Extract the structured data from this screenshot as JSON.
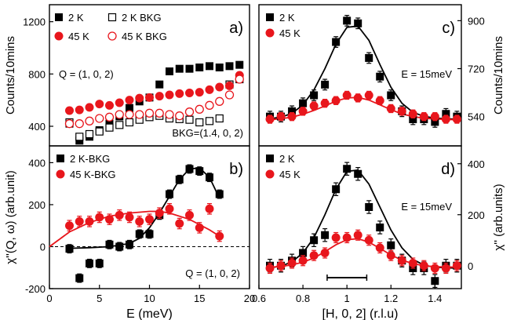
{
  "colors": {
    "s2K": "#000000",
    "s45K": "#e8161c"
  },
  "chart_data": [
    {
      "id": "a",
      "type": "scatter",
      "panel_label": "a)",
      "xlim": [
        0,
        20
      ],
      "ylim": [
        250,
        1330
      ],
      "yticks": [
        400,
        800,
        1200
      ],
      "ylabel": "Counts/10mins",
      "legend": [
        "2 K",
        "2 K BKG",
        "45 K",
        "45 K BKG"
      ],
      "annotations": [
        "Q = (1, 0, 2)",
        "BKG=(1.4, 0, 2)"
      ],
      "series": [
        {
          "name": "2 K",
          "style": "square-filled",
          "color": "#000000",
          "x": [
            2,
            3,
            4,
            5,
            6,
            7,
            8,
            9,
            10,
            11,
            12,
            13,
            14,
            15,
            16,
            17,
            18,
            19
          ],
          "y": [
            420,
            290,
            320,
            370,
            420,
            475,
            540,
            590,
            620,
            720,
            820,
            840,
            840,
            850,
            860,
            850,
            860,
            870
          ]
        },
        {
          "name": "2 K BKG",
          "style": "square-open",
          "color": "#000000",
          "x": [
            2,
            3,
            4,
            5,
            6,
            7,
            8,
            9,
            10,
            11,
            12,
            13,
            14,
            15,
            16,
            17,
            18,
            19
          ],
          "y": [
            430,
            320,
            340,
            360,
            390,
            410,
            430,
            450,
            470,
            480,
            460,
            455,
            450,
            430,
            440,
            460,
            720,
            760
          ]
        },
        {
          "name": "45 K",
          "style": "circle-filled",
          "color": "#e8161c",
          "x": [
            2,
            3,
            4,
            5,
            6,
            7,
            8,
            9,
            10,
            11,
            12,
            13,
            14,
            15,
            16,
            17,
            18,
            19
          ],
          "y": [
            520,
            525,
            545,
            570,
            560,
            580,
            600,
            615,
            620,
            630,
            640,
            650,
            655,
            660,
            680,
            700,
            710,
            790
          ]
        },
        {
          "name": "45 K BKG",
          "style": "circle-open",
          "color": "#e8161c",
          "x": [
            2,
            3,
            4,
            5,
            6,
            7,
            8,
            9,
            10,
            11,
            12,
            13,
            14,
            15,
            16,
            17,
            18,
            19
          ],
          "y": [
            420,
            420,
            440,
            460,
            470,
            490,
            490,
            490,
            500,
            500,
            490,
            480,
            510,
            530,
            560,
            590,
            640,
            760
          ]
        }
      ]
    },
    {
      "id": "b",
      "type": "scatter",
      "panel_label": "b)",
      "xlim": [
        0,
        20
      ],
      "ylim": [
        -200,
        480
      ],
      "xticks": [
        0,
        5,
        10,
        15,
        20
      ],
      "yticks": [
        -200,
        0,
        200,
        400
      ],
      "xlabel": "E (meV)",
      "ylabel": "χ''(Q, ω) (arb.unit)",
      "legend": [
        "2 K-BKG",
        "45 K-BKG"
      ],
      "annotations": [
        "Q = (1, 0, 2)"
      ],
      "series": [
        {
          "name": "2 K-BKG",
          "style": "square-filled",
          "color": "#000000",
          "x": [
            2,
            3,
            4,
            5,
            6,
            7,
            8,
            9,
            10,
            11,
            12,
            13,
            14,
            15,
            16,
            17
          ],
          "y": [
            -10,
            -150,
            -80,
            -80,
            10,
            0,
            10,
            60,
            60,
            150,
            250,
            320,
            370,
            360,
            330,
            250
          ],
          "err": [
            20,
            20,
            20,
            20,
            20,
            20,
            20,
            20,
            20,
            20,
            20,
            20,
            20,
            20,
            20,
            20
          ]
        },
        {
          "name": "45 K-BKG",
          "style": "circle-filled",
          "color": "#e8161c",
          "x": [
            2,
            3,
            4,
            5,
            6,
            7,
            8,
            9,
            10,
            11,
            12,
            13,
            14,
            15,
            16,
            17
          ],
          "y": [
            100,
            120,
            120,
            140,
            130,
            150,
            140,
            120,
            130,
            160,
            180,
            110,
            150,
            90,
            180,
            50
          ],
          "err": [
            25,
            25,
            25,
            25,
            25,
            25,
            25,
            25,
            25,
            25,
            25,
            25,
            25,
            25,
            25,
            25
          ]
        }
      ],
      "fits": [
        {
          "color": "#000000",
          "x": [
            2,
            4,
            6,
            8,
            9,
            10,
            11,
            12,
            13,
            14,
            15,
            16,
            17
          ],
          "y": [
            -8,
            -5,
            0,
            15,
            40,
            90,
            160,
            240,
            320,
            370,
            375,
            330,
            230
          ]
        },
        {
          "color": "#e8161c",
          "x": [
            0,
            2,
            4,
            6,
            8,
            10,
            11,
            12,
            14,
            16,
            17
          ],
          "y": [
            0,
            70,
            115,
            145,
            160,
            168,
            168,
            160,
            130,
            80,
            50
          ]
        }
      ]
    },
    {
      "id": "c",
      "type": "scatter",
      "panel_label": "c)",
      "xlim": [
        0.6,
        1.52
      ],
      "ylim": [
        430,
        960
      ],
      "yticks": [
        540,
        720,
        900
      ],
      "ylabel": "Counts/10mins",
      "legend": [
        "2 K",
        "45 K"
      ],
      "annotations": [
        "E = 15meV"
      ],
      "series": [
        {
          "name": "2 K",
          "style": "square-filled",
          "color": "#000000",
          "x": [
            0.65,
            0.7,
            0.75,
            0.8,
            0.85,
            0.9,
            0.95,
            1.0,
            1.05,
            1.1,
            1.15,
            1.2,
            1.25,
            1.3,
            1.35,
            1.4,
            1.45,
            1.5
          ],
          "y": [
            540,
            540,
            560,
            590,
            620,
            660,
            820,
            900,
            890,
            760,
            690,
            620,
            560,
            530,
            530,
            520,
            550,
            540
          ],
          "err": [
            20,
            20,
            20,
            20,
            20,
            20,
            20,
            20,
            20,
            20,
            20,
            20,
            20,
            20,
            20,
            20,
            20,
            20
          ]
        },
        {
          "name": "45 K",
          "style": "circle-filled",
          "color": "#e8161c",
          "x": [
            0.65,
            0.7,
            0.75,
            0.8,
            0.85,
            0.9,
            0.95,
            1.0,
            1.05,
            1.1,
            1.15,
            1.2,
            1.25,
            1.3,
            1.35,
            1.4,
            1.45,
            1.5
          ],
          "y": [
            530,
            540,
            540,
            560,
            580,
            590,
            600,
            620,
            610,
            620,
            600,
            570,
            560,
            550,
            540,
            540,
            530,
            530
          ],
          "err": [
            15,
            15,
            15,
            15,
            15,
            15,
            15,
            15,
            15,
            15,
            15,
            15,
            15,
            15,
            15,
            15,
            15,
            15
          ]
        }
      ],
      "fits": [
        {
          "color": "#000000",
          "x": [
            0.65,
            0.7,
            0.75,
            0.8,
            0.85,
            0.9,
            0.95,
            1.0,
            1.05,
            1.1,
            1.15,
            1.2,
            1.25,
            1.3,
            1.35,
            1.4,
            1.5
          ],
          "y": [
            532,
            538,
            552,
            584,
            640,
            720,
            812,
            875,
            880,
            826,
            735,
            650,
            590,
            556,
            541,
            534,
            530
          ]
        },
        {
          "color": "#e8161c",
          "x": [
            0.65,
            0.7,
            0.75,
            0.8,
            0.85,
            0.9,
            0.95,
            1.0,
            1.05,
            1.1,
            1.15,
            1.2,
            1.25,
            1.3,
            1.35,
            1.4,
            1.5
          ],
          "y": [
            528,
            532,
            538,
            549,
            563,
            580,
            598,
            610,
            612,
            602,
            584,
            566,
            550,
            540,
            534,
            531,
            528
          ]
        }
      ]
    },
    {
      "id": "d",
      "type": "scatter",
      "panel_label": "d)",
      "xlim": [
        0.6,
        1.52
      ],
      "ylim": [
        -90,
        470
      ],
      "xticks": [
        0.6,
        0.8,
        1.0,
        1.2,
        1.4
      ],
      "xticklabels": [
        "0.6",
        "0.8",
        "1",
        "1.2",
        "1.4"
      ],
      "yticks": [
        0,
        200,
        400
      ],
      "xlabel": "[H, 0, 2] (r.l.u)",
      "ylabel": "χ'' (arb.units)",
      "legend": [
        "2 K",
        "45 K"
      ],
      "annotations": [
        "E = 15meV"
      ],
      "resolution_bar": [
        0.91,
        1.09
      ],
      "series": [
        {
          "name": "2 K",
          "style": "square-filled",
          "color": "#000000",
          "x": [
            0.65,
            0.7,
            0.75,
            0.8,
            0.85,
            0.9,
            0.95,
            1.0,
            1.05,
            1.1,
            1.15,
            1.2,
            1.25,
            1.3,
            1.35,
            1.4,
            1.45,
            1.5
          ],
          "y": [
            0,
            0,
            20,
            50,
            100,
            120,
            300,
            380,
            360,
            230,
            150,
            80,
            20,
            -10,
            -10,
            -60,
            0,
            0
          ],
          "err": [
            25,
            25,
            25,
            25,
            25,
            25,
            25,
            25,
            25,
            25,
            25,
            25,
            25,
            25,
            25,
            25,
            25,
            25
          ]
        },
        {
          "name": "45 K",
          "style": "circle-filled",
          "color": "#e8161c",
          "x": [
            0.65,
            0.7,
            0.75,
            0.8,
            0.85,
            0.9,
            0.95,
            1.0,
            1.05,
            1.1,
            1.15,
            1.2,
            1.25,
            1.3,
            1.35,
            1.4,
            1.45,
            1.5
          ],
          "y": [
            -10,
            0,
            10,
            20,
            40,
            50,
            110,
            110,
            120,
            100,
            70,
            40,
            20,
            10,
            0,
            -10,
            -10,
            0
          ],
          "err": [
            20,
            20,
            20,
            20,
            20,
            20,
            20,
            20,
            20,
            20,
            20,
            20,
            20,
            20,
            20,
            20,
            20,
            20
          ]
        }
      ],
      "fits": [
        {
          "color": "#000000",
          "x": [
            0.65,
            0.7,
            0.75,
            0.8,
            0.85,
            0.9,
            0.95,
            1.0,
            1.05,
            1.1,
            1.15,
            1.2,
            1.25,
            1.3,
            1.35,
            1.4,
            1.5
          ],
          "y": [
            -8,
            -2,
            15,
            50,
            110,
            200,
            300,
            370,
            375,
            320,
            230,
            140,
            70,
            25,
            2,
            -6,
            -10
          ]
        },
        {
          "color": "#e8161c",
          "x": [
            0.65,
            0.7,
            0.75,
            0.8,
            0.85,
            0.9,
            0.95,
            1.0,
            1.05,
            1.1,
            1.15,
            1.2,
            1.25,
            1.3,
            1.35,
            1.4,
            1.5
          ],
          "y": [
            -6,
            -3,
            3,
            14,
            30,
            55,
            82,
            102,
            106,
            92,
            68,
            42,
            22,
            8,
            0,
            -4,
            -6
          ]
        }
      ]
    }
  ]
}
